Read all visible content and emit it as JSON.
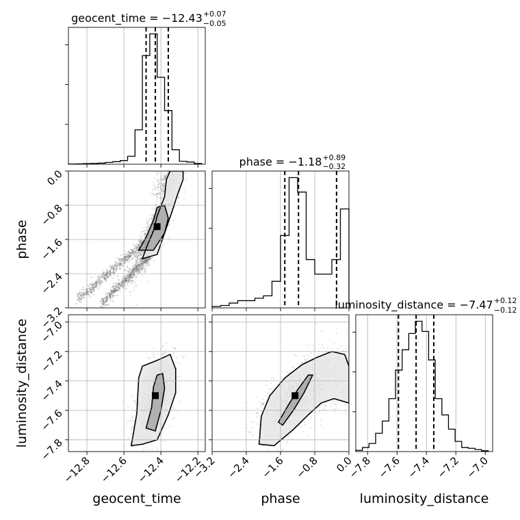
{
  "chart_data": {
    "type": "corner",
    "parameters": [
      {
        "name": "geocent_time",
        "title": {
          "prefix": "geocent_time = ",
          "median": "−12.43",
          "plus": "+0.07",
          "minus": "−0.05"
        },
        "range": [
          -12.9,
          -12.16
        ],
        "ticks": [
          -12.8,
          -12.6,
          -12.4,
          -12.2
        ],
        "tick_labels": [
          "−12.8",
          "−12.6",
          "−12.4",
          "−12.2"
        ],
        "quantiles": [
          -12.48,
          -12.43,
          -12.36
        ],
        "hist_edges": [
          -12.9,
          -12.86,
          -12.82,
          -12.78,
          -12.74,
          -12.7,
          -12.66,
          -12.62,
          -12.58,
          -12.54,
          -12.5,
          -12.46,
          -12.42,
          -12.38,
          -12.34,
          -12.3,
          -12.26,
          -12.22,
          -12.18
        ],
        "hist_counts": [
          0.5,
          1,
          1.5,
          2,
          3,
          5,
          7,
          10,
          22,
          95,
          300,
          360,
          240,
          148,
          40,
          8,
          6,
          2
        ]
      },
      {
        "name": "phase",
        "title": {
          "prefix": "phase = ",
          "median": "−1.18",
          "plus": "+0.89",
          "minus": "−0.32"
        },
        "range": [
          -3.2,
          0.0
        ],
        "ticks": [
          -3.2,
          -2.4,
          -1.6,
          -0.8,
          0.0
        ],
        "tick_labels": [
          "−3.2",
          "−2.4",
          "−1.6",
          "−0.8",
          "0.0"
        ],
        "quantiles": [
          -1.5,
          -1.18,
          -0.29
        ],
        "hist_edges": [
          -3.2,
          -3.0,
          -2.8,
          -2.6,
          -2.4,
          -2.2,
          -2.0,
          -1.8,
          -1.6,
          -1.4,
          -1.2,
          -1.0,
          -0.8,
          -0.6,
          -0.4,
          -0.2,
          0.0
        ],
        "hist_counts": [
          3,
          5,
          10,
          15,
          15,
          20,
          25,
          55,
          150,
          270,
          240,
          100,
          70,
          70,
          100,
          205
        ]
      },
      {
        "name": "luminosity_distance",
        "title": {
          "prefix": "luminosity_distance = ",
          "median": "−7.47",
          "plus": "+0.12",
          "minus": "−0.12"
        },
        "range": [
          -7.88,
          -6.95
        ],
        "ticks": [
          -7.8,
          -7.6,
          -7.4,
          -7.2,
          -7.0
        ],
        "tick_labels": [
          "−7.8",
          "−7.6",
          "−7.4",
          "−7.2",
          "−7.0"
        ],
        "quantiles": [
          -7.59,
          -7.47,
          -7.35
        ],
        "hist_edges": [
          -7.88,
          -7.835,
          -7.79,
          -7.745,
          -7.7,
          -7.655,
          -7.61,
          -7.565,
          -7.52,
          -7.475,
          -7.43,
          -7.385,
          -7.34,
          -7.295,
          -7.25,
          -7.205,
          -7.16,
          -7.115,
          -7.07,
          -7.025,
          -6.98
        ],
        "hist_counts": [
          3,
          10,
          20,
          45,
          75,
          130,
          200,
          250,
          290,
          320,
          295,
          225,
          130,
          90,
          55,
          25,
          10,
          8,
          5,
          2
        ]
      }
    ],
    "pairs": [
      {
        "x_param": 0,
        "y_param": 1,
        "peak": [
          -12.42,
          -1.3
        ],
        "modes": [
          {
            "center": [
              -12.44,
              -1.45
            ],
            "sx": 0.06,
            "sy": 0.5,
            "rho": 0.88
          },
          {
            "center": [
              -12.36,
              -0.2
            ],
            "sx": 0.04,
            "sy": 0.3,
            "rho": 0.5
          }
        ],
        "tails": [
          {
            "from": [
              -12.85,
              -3.0
            ],
            "to": [
              -12.5,
              -1.7
            ]
          },
          {
            "from": [
              -12.72,
              -3.1
            ],
            "to": [
              -12.46,
              -2.0
            ]
          }
        ],
        "contours": [
          [
            [
              -12.52,
              -1.85
            ],
            [
              -12.48,
              -1.55
            ],
            [
              -12.44,
              -1.15
            ],
            [
              -12.42,
              -0.85
            ],
            [
              -12.38,
              -0.8
            ],
            [
              -12.36,
              -1.1
            ],
            [
              -12.38,
              -1.45
            ],
            [
              -12.44,
              -1.85
            ]
          ],
          [
            [
              -12.5,
              -2.05
            ],
            [
              -12.47,
              -1.7
            ],
            [
              -12.44,
              -1.4
            ],
            [
              -12.42,
              -1.05
            ],
            [
              -12.38,
              -0.6
            ],
            [
              -12.37,
              -0.2
            ],
            [
              -12.35,
              0.0
            ],
            [
              -12.28,
              0.0
            ],
            [
              -12.28,
              -0.2
            ],
            [
              -12.31,
              -0.55
            ],
            [
              -12.34,
              -0.95
            ],
            [
              -12.38,
              -1.45
            ],
            [
              -12.42,
              -1.95
            ]
          ]
        ]
      },
      {
        "x_param": 0,
        "y_param": 2,
        "peak": [
          -12.43,
          -7.5
        ],
        "modes": [
          {
            "center": [
              -12.43,
              -7.5
            ],
            "sx": 0.05,
            "sy": 0.13,
            "rho": 0.55
          }
        ],
        "tails": [],
        "contours": [
          [
            [
              -12.48,
              -7.72
            ],
            [
              -12.45,
              -7.58
            ],
            [
              -12.44,
              -7.44
            ],
            [
              -12.42,
              -7.36
            ],
            [
              -12.39,
              -7.35
            ],
            [
              -12.38,
              -7.45
            ],
            [
              -12.4,
              -7.6
            ],
            [
              -12.43,
              -7.74
            ]
          ],
          [
            [
              -12.56,
              -7.84
            ],
            [
              -12.53,
              -7.62
            ],
            [
              -12.52,
              -7.38
            ],
            [
              -12.5,
              -7.3
            ],
            [
              -12.42,
              -7.26
            ],
            [
              -12.35,
              -7.22
            ],
            [
              -12.32,
              -7.32
            ],
            [
              -12.32,
              -7.48
            ],
            [
              -12.36,
              -7.63
            ],
            [
              -12.42,
              -7.8
            ],
            [
              -12.5,
              -7.83
            ]
          ]
        ]
      },
      {
        "x_param": 1,
        "y_param": 2,
        "peak": [
          -1.26,
          -7.5
        ],
        "modes": [
          {
            "center": [
              -1.3,
              -7.52
            ],
            "sx": 0.35,
            "sy": 0.12,
            "rho": 0.6
          },
          {
            "center": [
              -0.3,
              -7.38
            ],
            "sx": 0.4,
            "sy": 0.12,
            "rho": 0.2
          }
        ],
        "tails": [],
        "contours": [
          [
            [
              -1.65,
              -7.68
            ],
            [
              -1.45,
              -7.58
            ],
            [
              -1.2,
              -7.46
            ],
            [
              -0.95,
              -7.36
            ],
            [
              -0.85,
              -7.36
            ],
            [
              -1.05,
              -7.48
            ],
            [
              -1.3,
              -7.6
            ],
            [
              -1.55,
              -7.7
            ]
          ],
          [
            [
              -2.1,
              -7.83
            ],
            [
              -2.05,
              -7.64
            ],
            [
              -1.85,
              -7.5
            ],
            [
              -1.5,
              -7.38
            ],
            [
              -1.1,
              -7.29
            ],
            [
              -0.75,
              -7.24
            ],
            [
              -0.4,
              -7.2
            ],
            [
              -0.1,
              -7.22
            ],
            [
              0.0,
              -7.3
            ],
            [
              0.0,
              -7.55
            ],
            [
              -0.35,
              -7.52
            ],
            [
              -0.65,
              -7.55
            ],
            [
              -0.95,
              -7.63
            ],
            [
              -1.3,
              -7.73
            ],
            [
              -1.75,
              -7.84
            ]
          ]
        ]
      }
    ],
    "grid": true
  }
}
